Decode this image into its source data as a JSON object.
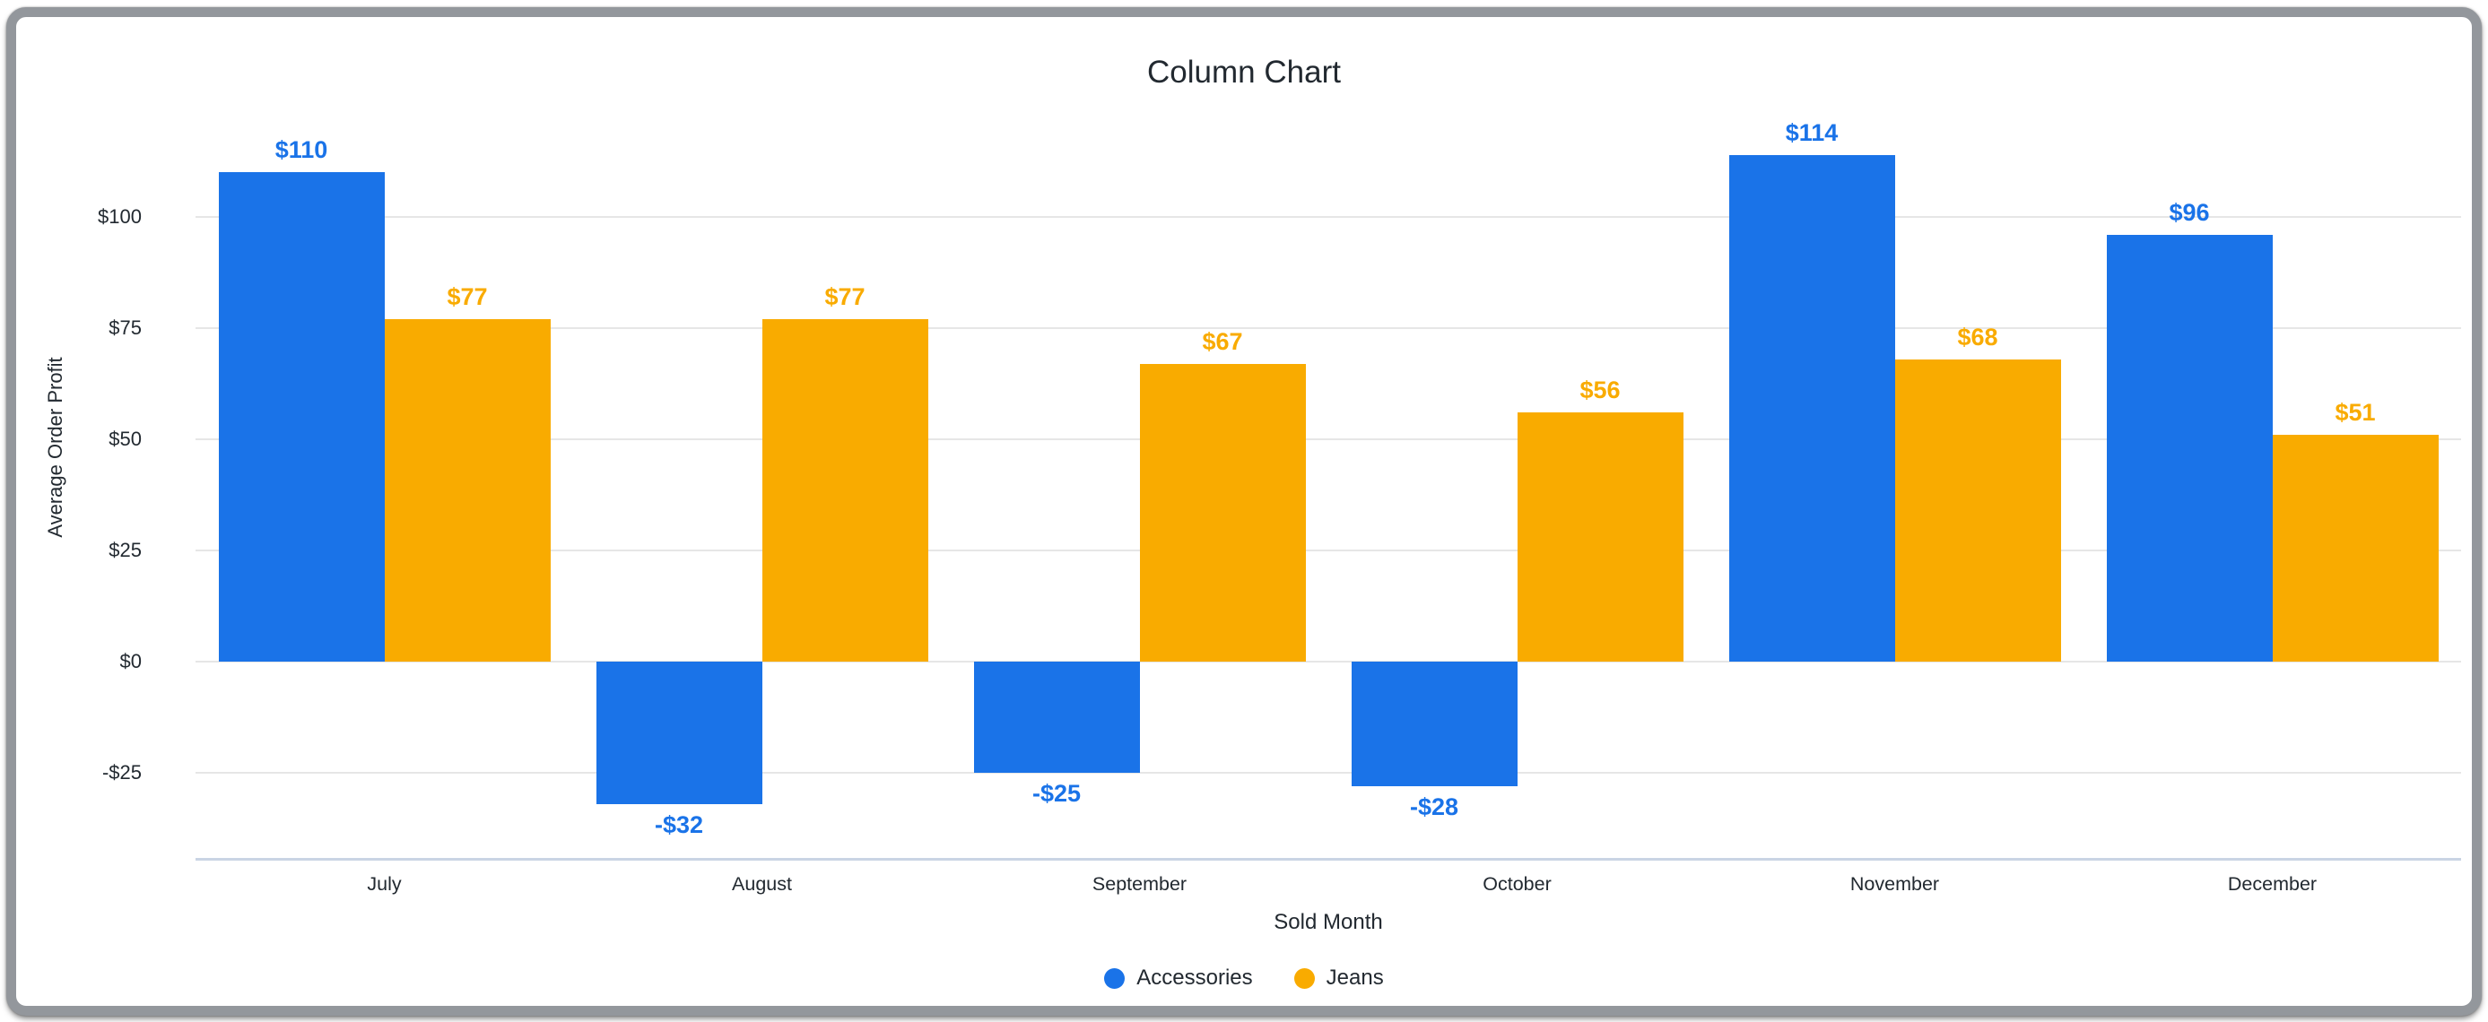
{
  "chart_data": {
    "type": "bar",
    "title": "Column Chart",
    "xlabel": "Sold Month",
    "ylabel": "Average Order Profit",
    "categories": [
      "July",
      "August",
      "September",
      "October",
      "November",
      "December"
    ],
    "series": [
      {
        "name": "Accessories",
        "color": "#1A73E8",
        "values": [
          110,
          -32,
          -25,
          -28,
          114,
          96
        ],
        "labels": [
          "$110",
          "-$32",
          "-$25",
          "-$28",
          "$114",
          "$96"
        ]
      },
      {
        "name": "Jeans",
        "color": "#F9AB00",
        "values": [
          77,
          77,
          67,
          56,
          68,
          51
        ],
        "labels": [
          "$77",
          "$77",
          "$67",
          "$56",
          "$68",
          "$51"
        ]
      }
    ],
    "y_ticks": [
      {
        "value": 100,
        "label": "$100"
      },
      {
        "value": 75,
        "label": "$75"
      },
      {
        "value": 50,
        "label": "$50"
      },
      {
        "value": 25,
        "label": "$25"
      },
      {
        "value": 0,
        "label": "$0"
      },
      {
        "value": -25,
        "label": "-$25"
      }
    ],
    "ylim": [
      -45,
      120
    ],
    "grid": true,
    "legend_position": "bottom",
    "colors": {
      "grid": "#E6E6E6",
      "axis_line": "#C9D4E4",
      "text": "#222930"
    }
  }
}
